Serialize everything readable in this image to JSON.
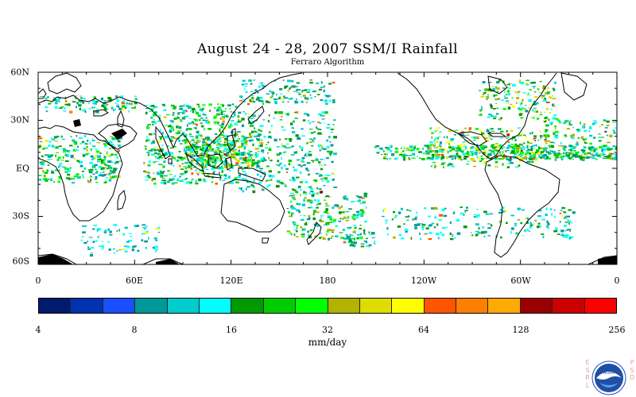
{
  "title": "August 24 - 28, 2007 SSM/I Rainfall",
  "subtitle": "Ferraro Algorithm",
  "map": {
    "lat_labels": [
      "60N",
      "30N",
      "EQ",
      "30S",
      "60S"
    ],
    "lon_labels": [
      "0",
      "60E",
      "120E",
      "180",
      "120W",
      "60W",
      "0"
    ],
    "lat_range": [
      -60,
      60
    ],
    "lon_range": [
      0,
      360
    ],
    "land_color": "#ffffff",
    "ocean_color": "#ffffff",
    "coastline_color": "#000000"
  },
  "colorbar": {
    "colors": [
      "#001a6e",
      "#0033b0",
      "#1a4fff",
      "#009999",
      "#00cccc",
      "#00ffff",
      "#009900",
      "#00cc00",
      "#00ff00",
      "#b2b200",
      "#dddd00",
      "#ffff00",
      "#ff5500",
      "#ff8000",
      "#ffaa00",
      "#990000",
      "#cc0000",
      "#ff0000"
    ],
    "tick_labels": [
      "4",
      "8",
      "16",
      "32",
      "64",
      "128",
      "256"
    ],
    "units": "mm/day"
  },
  "logo": {
    "left_letters": "ESRL",
    "right_letters": "PSD",
    "seal_text": "NOAA"
  }
}
